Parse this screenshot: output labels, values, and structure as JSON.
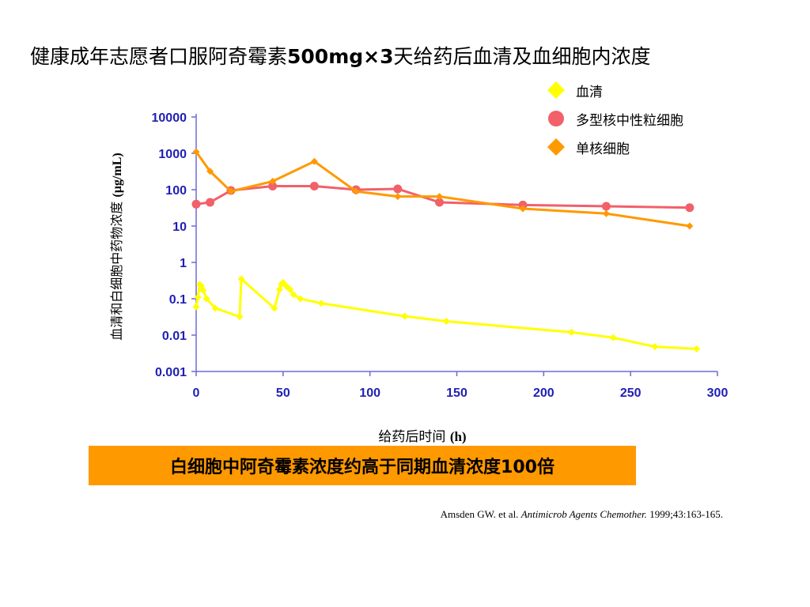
{
  "slide": {
    "title_prefix": "健康成年志愿者口服阿奇霉素",
    "title_dose": "500mg×3",
    "title_suffix": "天给药后血清及血细胞内浓度",
    "conclusion": "白细胞中阿奇霉素浓度约高于同期血清浓度100倍",
    "citation": {
      "authors": "Amsden GW. et al.",
      "journal": "Antimicrob Agents Chemother.",
      "details": "1999;43:163-165."
    }
  },
  "colors": {
    "serum": "#FFFF00",
    "pmn": "#F2606A",
    "mono": "#FF9900",
    "axis": "#6B6BD6",
    "tick_label": "#1F1FB4",
    "conclusion_bg": "#FF9900"
  },
  "chart_data": {
    "type": "line",
    "xlabel": "给药后时间",
    "xlabel_unit": "(h)",
    "ylabel": "血清和白细胞中药物浓度",
    "ylabel_unit": "(µg/mL)",
    "yscale": "log",
    "xlim": [
      0,
      300
    ],
    "ylim": [
      0.001,
      10000
    ],
    "x_ticks": [
      "0",
      "50",
      "100",
      "150",
      "200",
      "250",
      "300"
    ],
    "y_ticks": [
      "10000",
      "1000",
      "100",
      "10",
      "1",
      "0.1",
      "0.01",
      "0.001"
    ],
    "legend_position": "top-right",
    "series": [
      {
        "name": "血清",
        "marker": "diamond",
        "color": "#FFFF00",
        "points": [
          [
            0,
            0.06
          ],
          [
            1,
            0.11
          ],
          [
            2,
            0.25
          ],
          [
            3,
            0.22
          ],
          [
            4,
            0.17
          ],
          [
            6,
            0.1
          ],
          [
            11,
            0.055
          ],
          [
            25,
            0.032
          ],
          [
            26,
            0.35
          ],
          [
            45,
            0.055
          ],
          [
            48,
            0.18
          ],
          [
            49,
            0.25
          ],
          [
            50,
            0.28
          ],
          [
            52,
            0.22
          ],
          [
            54,
            0.18
          ],
          [
            56,
            0.13
          ],
          [
            60,
            0.1
          ],
          [
            72,
            0.075
          ],
          [
            120,
            0.033
          ],
          [
            144,
            0.024
          ],
          [
            216,
            0.012
          ],
          [
            240,
            0.0085
          ],
          [
            264,
            0.0048
          ],
          [
            288,
            0.0042
          ]
        ]
      },
      {
        "name": "多型核中性粒细胞",
        "marker": "circle",
        "color": "#F2606A",
        "points": [
          [
            0,
            40
          ],
          [
            8,
            45
          ],
          [
            20,
            95
          ],
          [
            44,
            125
          ],
          [
            68,
            125
          ],
          [
            92,
            100
          ],
          [
            116,
            105
          ],
          [
            140,
            45
          ],
          [
            188,
            38
          ],
          [
            236,
            35
          ],
          [
            284,
            32
          ]
        ]
      },
      {
        "name": "单核细胞",
        "marker": "diamond",
        "color": "#FF9900",
        "points": [
          [
            0,
            1100
          ],
          [
            8,
            320
          ],
          [
            20,
            90
          ],
          [
            44,
            170
          ],
          [
            68,
            600
          ],
          [
            92,
            90
          ],
          [
            116,
            65
          ],
          [
            140,
            65
          ],
          [
            188,
            30
          ],
          [
            236,
            22
          ],
          [
            284,
            10
          ]
        ]
      }
    ]
  }
}
